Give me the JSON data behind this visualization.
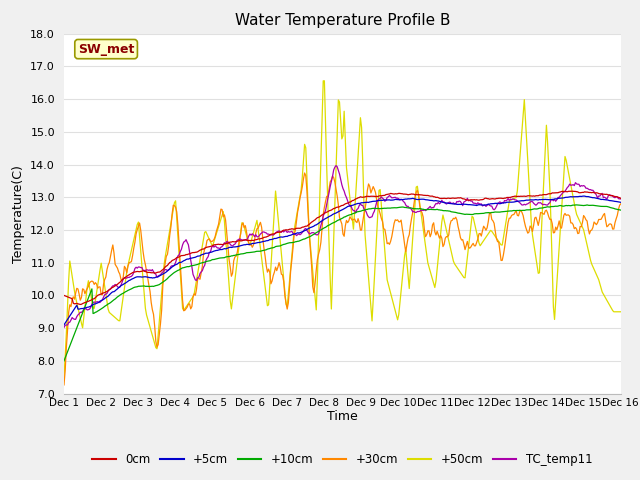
{
  "title": "Water Temperature Profile B",
  "xlabel": "Time",
  "ylabel": "Temperature(C)",
  "ylim": [
    7.0,
    18.0
  ],
  "yticks": [
    7.0,
    8.0,
    9.0,
    10.0,
    11.0,
    12.0,
    13.0,
    14.0,
    15.0,
    16.0,
    17.0,
    18.0
  ],
  "series_colors": {
    "0cm": "#cc0000",
    "+5cm": "#0000cc",
    "+10cm": "#00aa00",
    "+30cm": "#ff8800",
    "+50cm": "#dddd00",
    "TC_temp11": "#aa00aa"
  },
  "legend_label": "SW_met",
  "fig_bg_color": "#f0f0f0",
  "plot_bg_color": "#ffffff",
  "grid_color": "#e0e0e0",
  "x_ticks": [
    0,
    1,
    2,
    3,
    4,
    5,
    6,
    7,
    8,
    9,
    10,
    11,
    12,
    13,
    14,
    15
  ],
  "x_tick_labels": [
    "Dec 1",
    "Dec 2",
    "Dec 3",
    "Dec 4",
    "Dec 5",
    "Dec 6",
    "Dec 7",
    "Dec 8",
    "Dec 9",
    "Dec 10",
    "Dec 11",
    "Dec 12",
    "Dec 13",
    "Dec 14",
    "Dec 15",
    "Dec 16"
  ]
}
